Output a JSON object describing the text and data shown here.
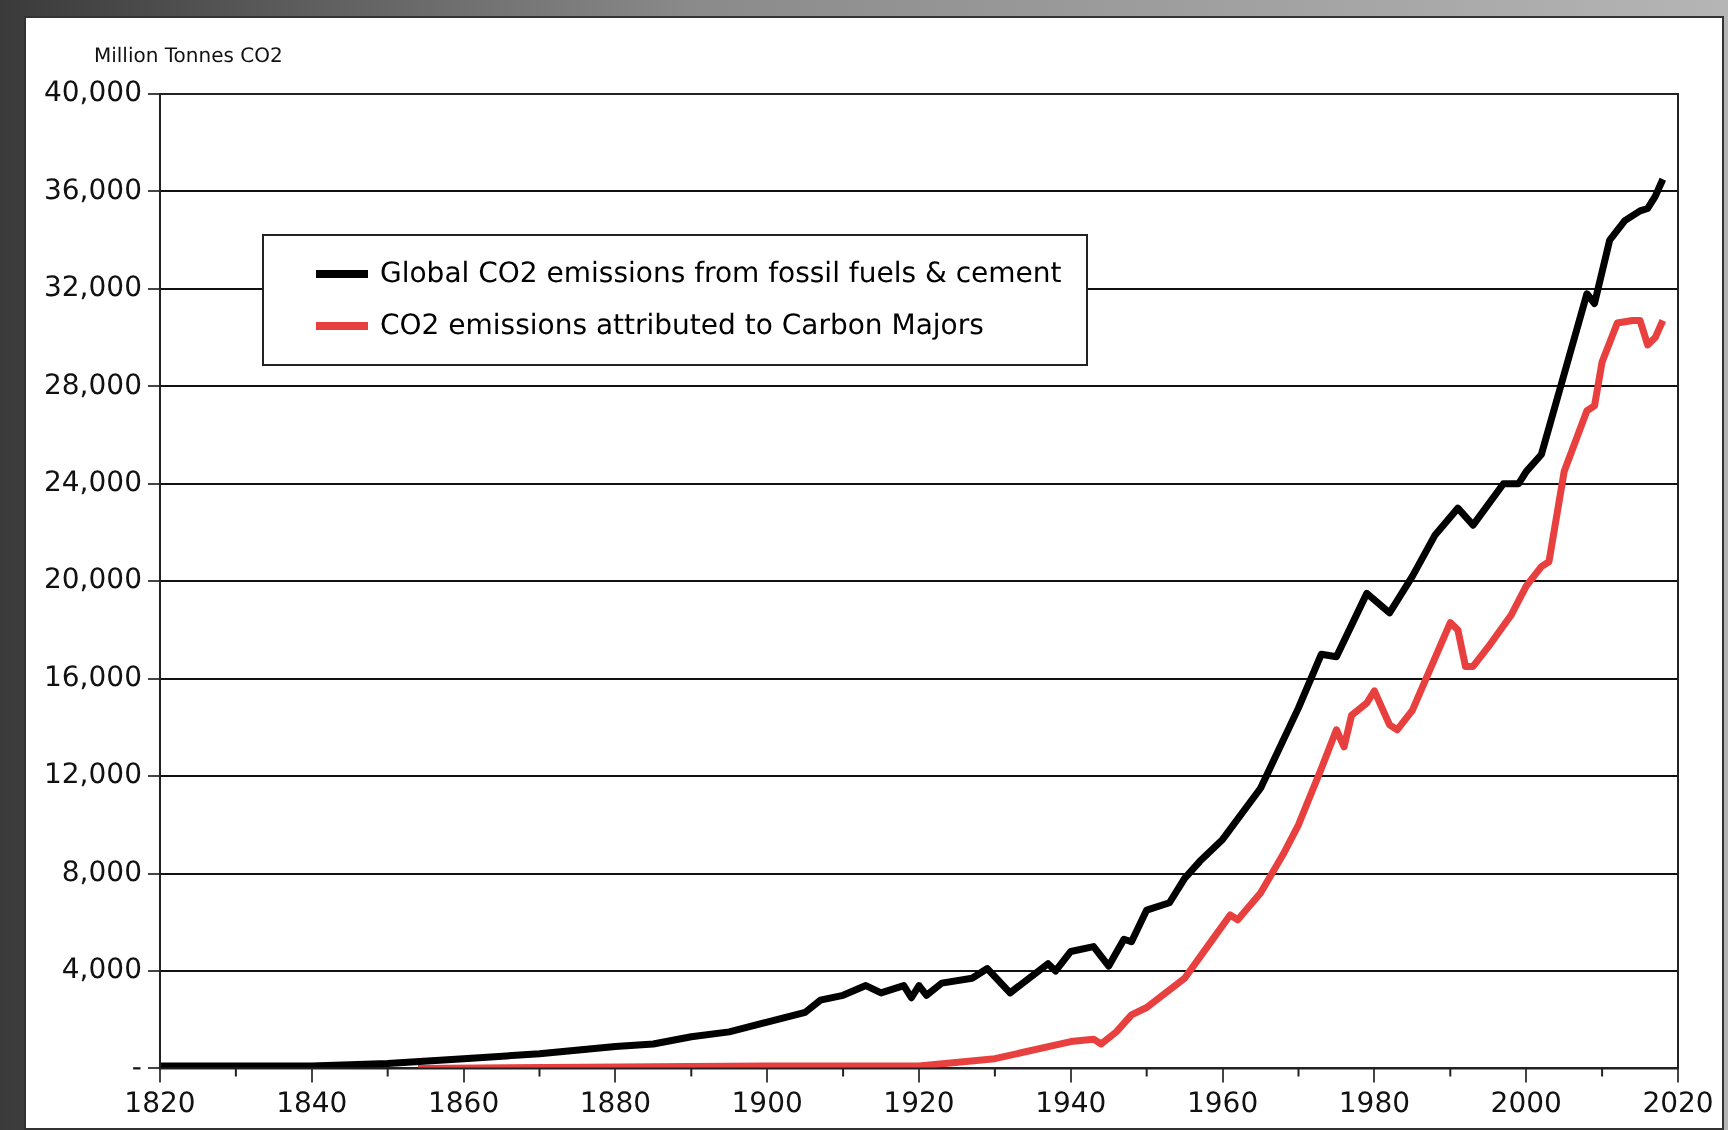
{
  "chart_data": {
    "type": "line",
    "ylabel": "Million Tonnes CO2",
    "xlim": [
      1820,
      2020
    ],
    "xticks": [
      1820,
      1840,
      1860,
      1880,
      1900,
      1920,
      1940,
      1960,
      1980,
      2000,
      2020
    ],
    "ylim": [
      0,
      40000
    ],
    "yticks": [
      {
        "value": 0,
        "label": "-"
      },
      {
        "value": 4000,
        "label": "4,000"
      },
      {
        "value": 8000,
        "label": "8,000"
      },
      {
        "value": 12000,
        "label": "12,000"
      },
      {
        "value": 16000,
        "label": "16,000"
      },
      {
        "value": 20000,
        "label": "20,000"
      },
      {
        "value": 24000,
        "label": "24,000"
      },
      {
        "value": 28000,
        "label": "28,000"
      },
      {
        "value": 32000,
        "label": "32,000"
      },
      {
        "value": 36000,
        "label": "36,000"
      },
      {
        "value": 40000,
        "label": "40,000"
      }
    ],
    "grid": "y",
    "legend": "top left",
    "marker": "none",
    "line_style": "solid",
    "series": [
      {
        "name": "Global CO2 emissions from fossil fuels & cement",
        "color": "#000000",
        "x": [
          1820,
          1840,
          1850,
          1860,
          1870,
          1880,
          1885,
          1890,
          1895,
          1900,
          1905,
          1907,
          1910,
          1913,
          1915,
          1918,
          1919,
          1920,
          1921,
          1923,
          1927,
          1929,
          1932,
          1937,
          1938,
          1940,
          1943,
          1945,
          1947,
          1948,
          1950,
          1953,
          1955,
          1957,
          1960,
          1965,
          1970,
          1973,
          1975,
          1979,
          1982,
          1985,
          1988,
          1991,
          1993,
          1997,
          1999,
          2000,
          2002,
          2005,
          2008,
          2009,
          2011,
          2013,
          2015,
          2016,
          2017,
          2018
        ],
        "values": [
          100,
          100,
          200,
          400,
          600,
          900,
          1000,
          1300,
          1500,
          1900,
          2300,
          2800,
          3000,
          3400,
          3100,
          3400,
          2900,
          3400,
          3000,
          3500,
          3700,
          4100,
          3100,
          4300,
          4000,
          4800,
          5000,
          4200,
          5300,
          5200,
          6500,
          6800,
          7800,
          8500,
          9400,
          11500,
          14800,
          17000,
          16900,
          19500,
          18700,
          20200,
          21900,
          23000,
          22300,
          24000,
          24000,
          24500,
          25200,
          28500,
          31800,
          31400,
          34000,
          34800,
          35200,
          35300,
          35800,
          36500
        ]
      },
      {
        "name": "CO2 emissions attributed to Carbon Majors",
        "color": "#e8403f",
        "x": [
          1854,
          1900,
          1920,
          1930,
          1940,
          1943,
          1944,
          1946,
          1948,
          1950,
          1955,
          1958,
          1961,
          1962,
          1965,
          1968,
          1970,
          1973,
          1975,
          1976,
          1977,
          1979,
          1980,
          1982,
          1983,
          1985,
          1990,
          1991,
          1992,
          1993,
          1995,
          1998,
          2000,
          2002,
          2003,
          2005,
          2008,
          2009,
          2010,
          2012,
          2014,
          2015,
          2016,
          2017,
          2018
        ],
        "values": [
          0,
          100,
          100,
          400,
          1100,
          1200,
          1000,
          1500,
          2200,
          2500,
          3700,
          5000,
          6300,
          6100,
          7200,
          8800,
          10000,
          12300,
          13900,
          13200,
          14500,
          15000,
          15500,
          14100,
          13900,
          14700,
          18300,
          18000,
          16500,
          16500,
          17300,
          18600,
          19800,
          20600,
          20800,
          24500,
          27000,
          27200,
          29000,
          30600,
          30700,
          30700,
          29700,
          30000,
          30700
        ]
      }
    ]
  }
}
